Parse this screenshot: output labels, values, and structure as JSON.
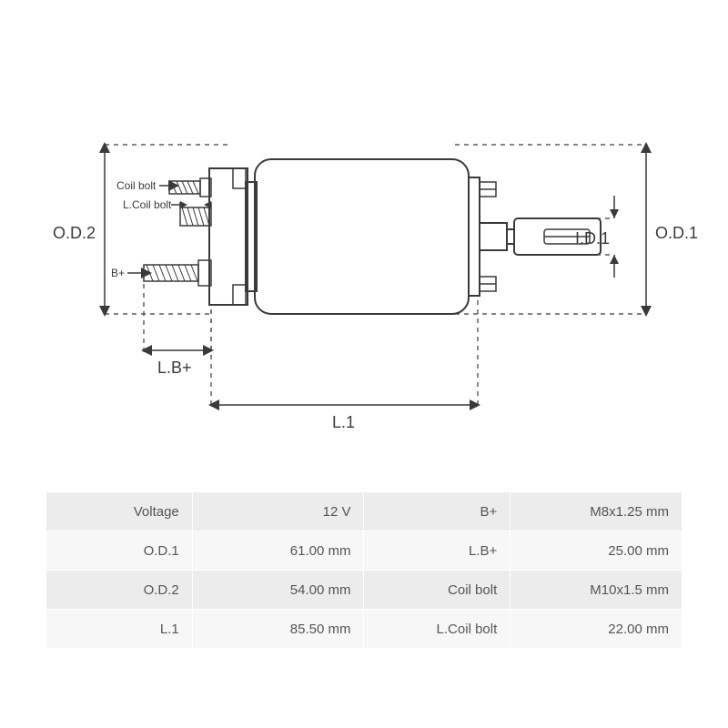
{
  "diagram": {
    "labels": {
      "od2": "O.D.2",
      "od1": "O.D.1",
      "id1": "I.D.1",
      "l1": "L.1",
      "lbplus": "L.B+",
      "bplus": "B+",
      "coil_bolt": "Coil bolt",
      "lcoil_bolt": "L.Coil bolt"
    },
    "colors": {
      "stroke": "#3a3a3a",
      "background": "#ffffff",
      "table_row_dark": "#ececec",
      "table_row_light": "#f7f7f7",
      "text": "#555555"
    },
    "fonts": {
      "label_size": 18,
      "small_label_size": 12,
      "table_size": 15
    }
  },
  "specs": {
    "rows": [
      {
        "l1": "Voltage",
        "v1": "12 V",
        "l2": "B+",
        "v2": "M8x1.25 mm"
      },
      {
        "l1": "O.D.1",
        "v1": "61.00 mm",
        "l2": "L.B+",
        "v2": "25.00 mm"
      },
      {
        "l1": "O.D.2",
        "v1": "54.00 mm",
        "l2": "Coil bolt",
        "v2": "M10x1.5 mm"
      },
      {
        "l1": "L.1",
        "v1": "85.50 mm",
        "l2": "L.Coil bolt",
        "v2": "22.00 mm"
      }
    ]
  }
}
